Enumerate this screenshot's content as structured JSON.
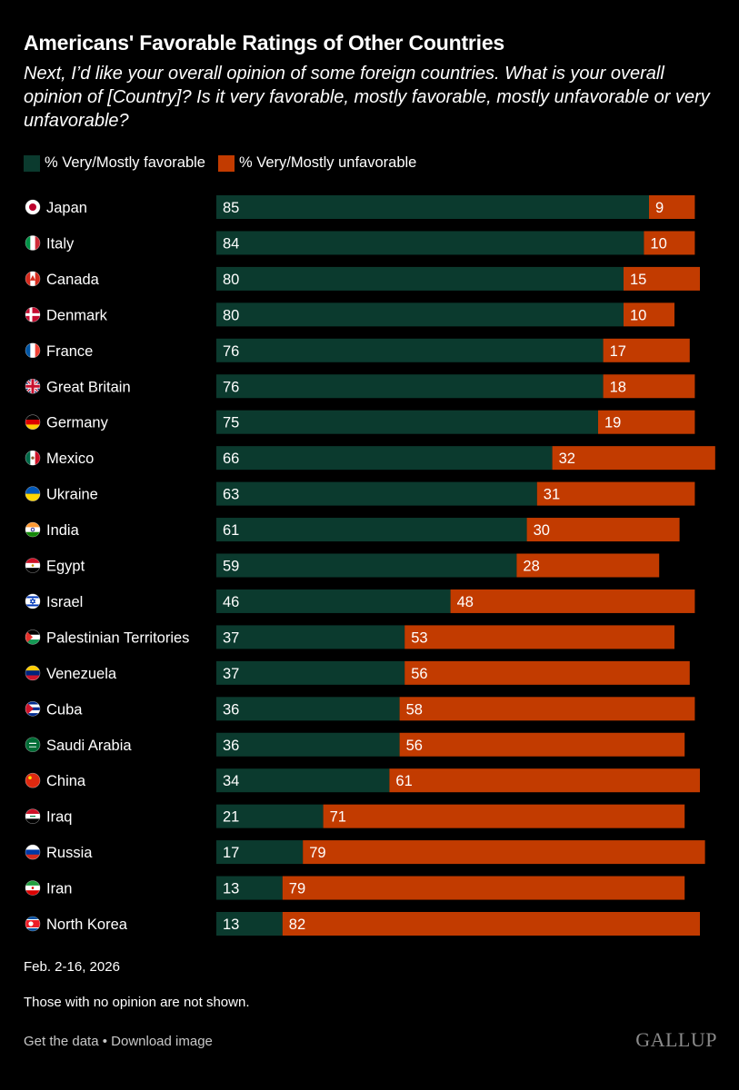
{
  "header": {
    "title": "Americans' Favorable Ratings of Other Countries",
    "subtitle": "Next, I’d like your overall opinion of some foreign countries. What is your overall opinion of [Country]? Is it very favorable, mostly favorable, mostly unfavorable or very unfavorable?"
  },
  "colors": {
    "favorable": "#0b3a2e",
    "unfavorable": "#c23b00",
    "background": "#000000"
  },
  "chart_data": {
    "type": "bar",
    "orientation": "horizontal-stacked",
    "title": "Americans' Favorable Ratings of Other Countries",
    "legend": [
      "% Very/Mostly favorable",
      "% Very/Mostly unfavorable"
    ],
    "legend_placement": "top-left",
    "xlim": [
      0,
      100
    ],
    "categories": [
      "Japan",
      "Italy",
      "Canada",
      "Denmark",
      "France",
      "Great Britain",
      "Germany",
      "Mexico",
      "Ukraine",
      "India",
      "Egypt",
      "Israel",
      "Palestinian Territories",
      "Venezuela",
      "Cuba",
      "Saudi Arabia",
      "China",
      "Iraq",
      "Russia",
      "Iran",
      "North Korea"
    ],
    "series": [
      {
        "name": "% Very/Mostly favorable",
        "values": [
          85,
          84,
          80,
          80,
          76,
          76,
          75,
          66,
          63,
          61,
          59,
          46,
          37,
          37,
          36,
          36,
          34,
          21,
          17,
          13,
          13
        ]
      },
      {
        "name": "% Very/Mostly unfavorable",
        "values": [
          9,
          10,
          15,
          10,
          17,
          18,
          19,
          32,
          31,
          30,
          28,
          48,
          53,
          56,
          58,
          56,
          61,
          71,
          79,
          79,
          82
        ]
      }
    ],
    "flags": [
      "japan-flag-icon",
      "italy-flag-icon",
      "canada-flag-icon",
      "denmark-flag-icon",
      "france-flag-icon",
      "great-britain-flag-icon",
      "germany-flag-icon",
      "mexico-flag-icon",
      "ukraine-flag-icon",
      "india-flag-icon",
      "egypt-flag-icon",
      "israel-flag-icon",
      "palestine-flag-icon",
      "venezuela-flag-icon",
      "cuba-flag-icon",
      "saudi-arabia-flag-icon",
      "china-flag-icon",
      "iraq-flag-icon",
      "russia-flag-icon",
      "iran-flag-icon",
      "north-korea-flag-icon"
    ]
  },
  "footer": {
    "date": "Feb. 2-16, 2026",
    "note": "Those with no opinion are not shown.",
    "get_data": "Get the data",
    "separator": " • ",
    "download": "Download image",
    "brand": "GALLUP"
  }
}
